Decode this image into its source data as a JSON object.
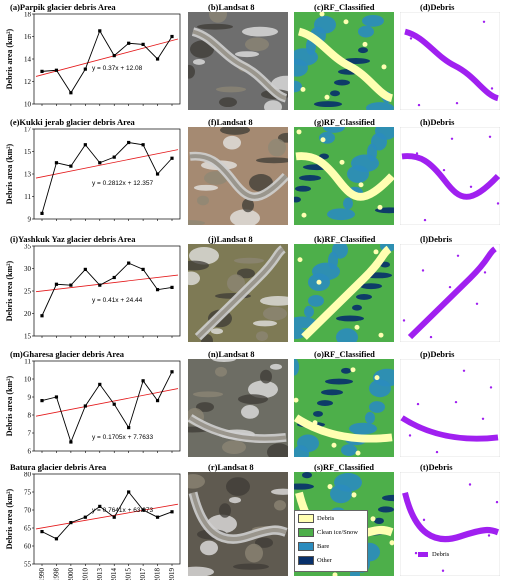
{
  "rows": [
    {
      "chart_title": "(a)Parpik glacier debris Area",
      "titles": [
        "(b)Landsat 8",
        "(c)RF_Classified",
        "(d)Debris"
      ],
      "ylabel": "Debris area (km²)",
      "equation": "y = 0.37x + 12.08"
    },
    {
      "chart_title": "(e)Kukki jerab glacier debris Area",
      "titles": [
        "(f)Landsat 8",
        "(g)RF_Classified",
        "(h)Debris"
      ],
      "ylabel": "Debris area (km²)",
      "equation": "y = 0.2812x + 12.357"
    },
    {
      "chart_title": "(i)Yashkuk Yaz glacier debris Area",
      "titles": [
        "(j)Landsat 8",
        "(k)RF_Classified",
        "(l)Debris"
      ],
      "ylabel": "Debris area (km²)",
      "equation": "y = 0.41x + 24.44"
    },
    {
      "chart_title": "(m)Gharesa glacier debris Area",
      "titles": [
        "(n)Landsat 8",
        "(o)RF_Classified",
        "(p)Debris"
      ],
      "ylabel": "Debris area (km²)",
      "equation": "y = 0.1705x + 7.7633"
    },
    {
      "chart_title": "Batura glacier debris Area",
      "titles": [
        "(r)Landsat 8",
        "(s)RF_Classified",
        "(t)Debris"
      ],
      "ylabel": "Debris area (km²)",
      "equation": "y = 0.7641x + 63.973"
    }
  ],
  "legend": {
    "items": [
      {
        "label": "Debris",
        "color": "#ffffb2"
      },
      {
        "label": "Clean ice/Snow",
        "color": "#4daf4a"
      },
      {
        "label": "Bare",
        "color": "#2b8cbe"
      },
      {
        "label": "Other",
        "color": "#08306b"
      }
    ],
    "debris_label": "Debris",
    "debris_color": "#a020f0"
  },
  "chart_data": [
    {
      "type": "line",
      "title": "(a)Parpik glacier debris Area",
      "ylabel": "Debris area (km²)",
      "x": [
        "1990",
        "1998",
        "2000",
        "2010",
        "2013",
        "2014",
        "2015",
        "2017",
        "2018",
        "2019"
      ],
      "series": [
        {
          "values": [
            12.9,
            13.0,
            11.0,
            13.1,
            16.5,
            14.3,
            15.4,
            15.3,
            14.0,
            16.0
          ]
        }
      ],
      "trend": {
        "slope": 0.37,
        "intercept": 12.08
      },
      "ylim": [
        10,
        18
      ],
      "yticks": [
        10,
        12,
        14,
        16,
        18
      ]
    },
    {
      "type": "line",
      "title": "(e)Kukki jerab glacier debris Area",
      "ylabel": "Debris area (km²)",
      "x": [
        "1990",
        "1998",
        "2000",
        "2010",
        "2013",
        "2014",
        "2015",
        "2017",
        "2018",
        "2019"
      ],
      "series": [
        {
          "values": [
            9.5,
            14.0,
            13.7,
            15.6,
            14.0,
            14.5,
            15.8,
            15.6,
            13.0,
            14.4
          ]
        }
      ],
      "trend": {
        "slope": 0.2812,
        "intercept": 12.357
      },
      "ylim": [
        9,
        17
      ],
      "yticks": [
        9,
        11,
        13,
        15,
        17
      ]
    },
    {
      "type": "line",
      "title": "(i)Yashkuk Yaz glacier debris Area",
      "ylabel": "Debris area (km²)",
      "x": [
        "1990",
        "1998",
        "2000",
        "2010",
        "2013",
        "2014",
        "2015",
        "2017",
        "2018",
        "2019"
      ],
      "series": [
        {
          "values": [
            19.5,
            26.5,
            26.3,
            29.8,
            26.3,
            28.0,
            31.2,
            29.8,
            25.3,
            25.8
          ]
        }
      ],
      "trend": {
        "slope": 0.41,
        "intercept": 24.44
      },
      "ylim": [
        15,
        35
      ],
      "yticks": [
        15,
        20,
        25,
        30,
        35
      ]
    },
    {
      "type": "line",
      "title": "(m)Gharesa glacier debris Area",
      "ylabel": "Debris area (km²)",
      "x": [
        "1990",
        "1998",
        "2000",
        "2010",
        "2013",
        "2014",
        "2015",
        "2017",
        "2018",
        "2019"
      ],
      "series": [
        {
          "values": [
            8.8,
            9.0,
            6.5,
            8.5,
            9.7,
            8.6,
            7.3,
            9.9,
            8.8,
            10.4
          ]
        }
      ],
      "trend": {
        "slope": 0.1705,
        "intercept": 7.7633
      },
      "ylim": [
        6,
        11
      ],
      "yticks": [
        6,
        7,
        8,
        9,
        10,
        11
      ]
    },
    {
      "type": "line",
      "title": "Batura glacier debris Area",
      "ylabel": "Debris area (km²)",
      "x": [
        "1990",
        "1998",
        "2000",
        "2010",
        "2013",
        "2014",
        "2015",
        "2017",
        "2018",
        "2019"
      ],
      "series": [
        {
          "values": [
            64.0,
            62.0,
            66.5,
            68.0,
            71.0,
            68.0,
            75.0,
            70.0,
            68.0,
            69.5
          ]
        }
      ],
      "trend": {
        "slope": 0.7641,
        "intercept": 63.973
      },
      "ylim": [
        55,
        80
      ],
      "yticks": [
        55,
        60,
        65,
        70,
        75,
        80
      ],
      "xticks_shown": true
    }
  ]
}
